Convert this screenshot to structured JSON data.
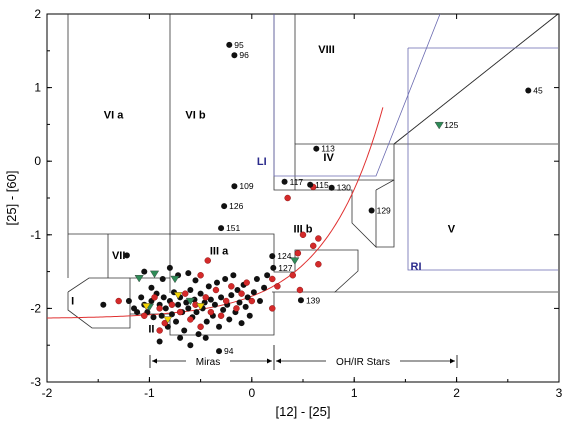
{
  "chart_data": {
    "type": "scatter",
    "xlabel": "[12] - [25]",
    "ylabel": "[25] - [60]",
    "xlim": [
      -2,
      3
    ],
    "ylim": [
      -3,
      2
    ],
    "x_ticks": [
      -2,
      -1,
      0,
      1,
      2,
      3
    ],
    "y_ticks": [
      -3,
      -2,
      -1,
      0,
      1,
      2
    ],
    "x_tick_labels": [
      "-2",
      "-1",
      "0",
      "1",
      "2",
      "3"
    ],
    "y_tick_labels": [
      "-3",
      "-2",
      "-1",
      "0",
      "1",
      "2"
    ],
    "grid": false,
    "colors": {
      "black": "#111111",
      "red": "#d42a2a",
      "green": "#2e8b57",
      "yellow": "#f2d300",
      "curve": "#e03030",
      "blue": "#6a6ab0"
    },
    "regions": [
      {
        "label": "I",
        "x": -1.75,
        "y": -1.95
      },
      {
        "label": "II",
        "x": -0.98,
        "y": -2.33
      },
      {
        "label": "III a",
        "x": -0.32,
        "y": -1.27
      },
      {
        "label": "III b",
        "x": 0.5,
        "y": -0.97
      },
      {
        "label": "IV",
        "x": 0.75,
        "y": 0.0
      },
      {
        "label": "V",
        "x": 1.95,
        "y": -0.97
      },
      {
        "label": "VI a",
        "x": -1.35,
        "y": 0.58
      },
      {
        "label": "VI b",
        "x": -0.55,
        "y": 0.58
      },
      {
        "label": "VII",
        "x": -1.3,
        "y": -1.33
      },
      {
        "label": "VIII",
        "x": 0.73,
        "y": 1.47
      }
    ],
    "blue_regions": [
      {
        "label": "LI",
        "x": 0.05,
        "y": -0.05
      },
      {
        "label": "RI",
        "x": 1.55,
        "y": -1.48
      }
    ],
    "labeled_points": [
      {
        "label": "95",
        "x": -0.22,
        "y": 1.58
      },
      {
        "label": "96",
        "x": -0.17,
        "y": 1.44
      },
      {
        "label": "45",
        "x": 2.7,
        "y": 0.96
      },
      {
        "label": "125",
        "x": 1.83,
        "y": 0.49,
        "color": "green"
      },
      {
        "label": "113",
        "x": 0.63,
        "y": 0.17
      },
      {
        "label": "117",
        "x": 0.32,
        "y": -0.28
      },
      {
        "label": "130",
        "x": 0.78,
        "y": -0.36
      },
      {
        "label": "115",
        "x": 0.57,
        "y": -0.32
      },
      {
        "label": "109",
        "x": -0.17,
        "y": -0.34
      },
      {
        "label": "126",
        "x": -0.27,
        "y": -0.61
      },
      {
        "label": "129",
        "x": 1.17,
        "y": -0.67
      },
      {
        "label": "151",
        "x": -0.3,
        "y": -0.91
      },
      {
        "label": "124",
        "x": 0.2,
        "y": -1.29
      },
      {
        "label": "127",
        "x": 0.21,
        "y": -1.45
      },
      {
        "label": "139",
        "x": 0.48,
        "y": -1.89
      },
      {
        "label": "94",
        "x": -0.32,
        "y": -2.58
      }
    ],
    "green_points": [
      {
        "x": -1.1,
        "y": -1.59
      },
      {
        "x": -0.95,
        "y": -1.53
      },
      {
        "x": -0.75,
        "y": -1.6
      },
      {
        "x": 0.42,
        "y": -1.35
      },
      {
        "x": -1.0,
        "y": -1.98
      },
      {
        "x": -0.6,
        "y": -1.9
      }
    ],
    "yellow_points": [
      {
        "x": -1.03,
        "y": -1.97
      },
      {
        "x": -0.72,
        "y": -1.82
      },
      {
        "x": -0.5,
        "y": -1.97
      },
      {
        "x": -0.82,
        "y": -2.15
      }
    ],
    "red_points": [
      {
        "x": -1.3,
        "y": -1.9
      },
      {
        "x": -0.95,
        "y": -1.85
      },
      {
        "x": -0.9,
        "y": -2.0
      },
      {
        "x": -0.85,
        "y": -2.2
      },
      {
        "x": -0.78,
        "y": -1.95
      },
      {
        "x": -0.7,
        "y": -2.05
      },
      {
        "x": -0.65,
        "y": -1.8
      },
      {
        "x": -0.6,
        "y": -2.15
      },
      {
        "x": -0.55,
        "y": -1.95
      },
      {
        "x": -0.5,
        "y": -2.25
      },
      {
        "x": -0.45,
        "y": -1.85
      },
      {
        "x": -0.4,
        "y": -2.05
      },
      {
        "x": -0.35,
        "y": -1.75
      },
      {
        "x": -0.3,
        "y": -2.1
      },
      {
        "x": -0.25,
        "y": -1.9
      },
      {
        "x": -0.2,
        "y": -1.7
      },
      {
        "x": -0.15,
        "y": -2.0
      },
      {
        "x": -0.1,
        "y": -1.8
      },
      {
        "x": -0.05,
        "y": -1.65
      },
      {
        "x": 0.0,
        "y": -1.9
      },
      {
        "x": -0.43,
        "y": -1.35
      },
      {
        "x": -0.5,
        "y": -1.55
      },
      {
        "x": 0.2,
        "y": -1.6
      },
      {
        "x": 0.25,
        "y": -1.7
      },
      {
        "x": 0.2,
        "y": -2.0
      },
      {
        "x": 0.4,
        "y": -1.55
      },
      {
        "x": 0.45,
        "y": -1.25
      },
      {
        "x": 0.5,
        "y": -1.0
      },
      {
        "x": 0.35,
        "y": -0.5
      },
      {
        "x": 0.6,
        "y": -0.35
      },
      {
        "x": 0.65,
        "y": -1.05
      },
      {
        "x": 0.65,
        "y": -1.4
      },
      {
        "x": 0.47,
        "y": -1.75
      },
      {
        "x": 0.6,
        "y": -1.15
      },
      {
        "x": -1.05,
        "y": -2.1
      },
      {
        "x": -0.9,
        "y": -2.3
      }
    ],
    "black_points": [
      {
        "x": -1.45,
        "y": -1.95
      },
      {
        "x": -1.2,
        "y": -1.9
      },
      {
        "x": -1.15,
        "y": -2.0
      },
      {
        "x": -1.12,
        "y": -2.05
      },
      {
        "x": -1.08,
        "y": -1.85
      },
      {
        "x": -1.05,
        "y": -1.95
      },
      {
        "x": -1.02,
        "y": -2.05
      },
      {
        "x": -0.98,
        "y": -1.9
      },
      {
        "x": -0.96,
        "y": -2.12
      },
      {
        "x": -0.93,
        "y": -1.8
      },
      {
        "x": -0.9,
        "y": -1.95
      },
      {
        "x": -0.88,
        "y": -2.1
      },
      {
        "x": -0.86,
        "y": -1.85
      },
      {
        "x": -0.84,
        "y": -2.0
      },
      {
        "x": -0.82,
        "y": -2.25
      },
      {
        "x": -0.8,
        "y": -1.9
      },
      {
        "x": -0.78,
        "y": -2.08
      },
      {
        "x": -0.76,
        "y": -1.78
      },
      {
        "x": -0.74,
        "y": -2.18
      },
      {
        "x": -0.72,
        "y": -1.95
      },
      {
        "x": -0.7,
        "y": -1.85
      },
      {
        "x": -0.68,
        "y": -2.05
      },
      {
        "x": -0.66,
        "y": -2.3
      },
      {
        "x": -0.64,
        "y": -1.92
      },
      {
        "x": -0.62,
        "y": -2.0
      },
      {
        "x": -0.6,
        "y": -1.75
      },
      {
        "x": -0.58,
        "y": -2.12
      },
      {
        "x": -0.56,
        "y": -1.88
      },
      {
        "x": -0.54,
        "y": -2.05
      },
      {
        "x": -0.52,
        "y": -2.35
      },
      {
        "x": -0.5,
        "y": -1.8
      },
      {
        "x": -0.48,
        "y": -2.0
      },
      {
        "x": -0.46,
        "y": -1.92
      },
      {
        "x": -0.44,
        "y": -2.18
      },
      {
        "x": -0.42,
        "y": -1.7
      },
      {
        "x": -0.4,
        "y": -1.88
      },
      {
        "x": -0.38,
        "y": -2.1
      },
      {
        "x": -0.36,
        "y": -1.95
      },
      {
        "x": -0.34,
        "y": -1.65
      },
      {
        "x": -0.32,
        "y": -2.25
      },
      {
        "x": -0.3,
        "y": -1.85
      },
      {
        "x": -0.28,
        "y": -2.02
      },
      {
        "x": -0.26,
        "y": -1.6
      },
      {
        "x": -0.24,
        "y": -1.95
      },
      {
        "x": -0.22,
        "y": -2.15
      },
      {
        "x": -0.2,
        "y": -1.82
      },
      {
        "x": -0.18,
        "y": -1.55
      },
      {
        "x": -0.16,
        "y": -2.05
      },
      {
        "x": -0.14,
        "y": -1.75
      },
      {
        "x": -0.12,
        "y": -1.92
      },
      {
        "x": -0.1,
        "y": -2.2
      },
      {
        "x": -0.08,
        "y": -1.68
      },
      {
        "x": -0.06,
        "y": -1.98
      },
      {
        "x": -0.04,
        "y": -1.85
      },
      {
        "x": -0.02,
        "y": -2.1
      },
      {
        "x": 0.02,
        "y": -1.78
      },
      {
        "x": 0.05,
        "y": -1.6
      },
      {
        "x": 0.08,
        "y": -1.9
      },
      {
        "x": 0.12,
        "y": -1.72
      },
      {
        "x": 0.15,
        "y": -1.55
      },
      {
        "x": -1.22,
        "y": -1.28
      },
      {
        "x": -1.05,
        "y": -1.5
      },
      {
        "x": -0.98,
        "y": -1.72
      },
      {
        "x": -0.87,
        "y": -1.6
      },
      {
        "x": -0.8,
        "y": -1.45
      },
      {
        "x": -0.72,
        "y": -1.55
      },
      {
        "x": -0.62,
        "y": -1.52
      },
      {
        "x": -0.55,
        "y": -1.62
      },
      {
        "x": -0.7,
        "y": -2.4
      },
      {
        "x": -0.6,
        "y": -2.5
      },
      {
        "x": -0.45,
        "y": -2.4
      },
      {
        "x": -0.9,
        "y": -2.45
      }
    ],
    "annotations": {
      "miras": "Miras",
      "ohir": "OH/IR Stars"
    }
  }
}
